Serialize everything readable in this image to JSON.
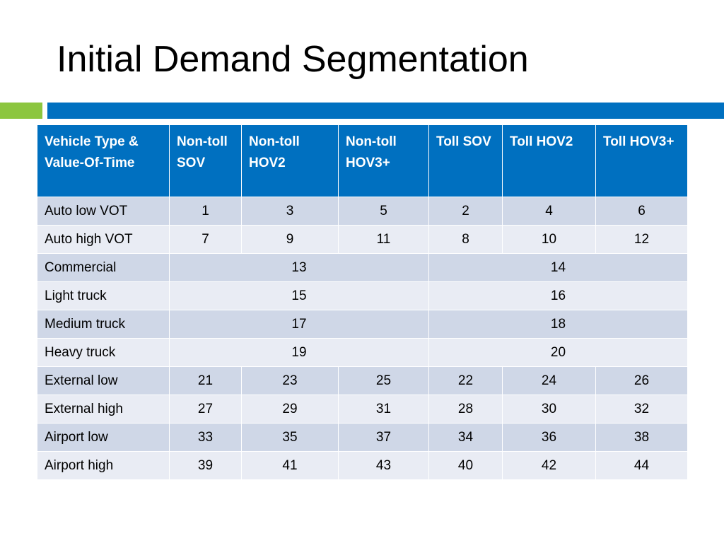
{
  "slide": {
    "title": "Initial Demand Segmentation"
  },
  "colors": {
    "accent_green": "#8cc63f",
    "accent_blue": "#0070c0",
    "row_dark": "#cfd7e7",
    "row_light": "#e9ecf4"
  },
  "table": {
    "headers": [
      "Vehicle Type & Value-Of-Time",
      "Non-toll SOV",
      "Non-toll HOV2",
      "Non-toll HOV3+",
      "Toll SOV",
      "Toll HOV2",
      "Toll HOV3+"
    ],
    "rows": [
      {
        "label": "Auto low VOT",
        "cells": [
          "1",
          "3",
          "5",
          "2",
          "4",
          "6"
        ]
      },
      {
        "label": "Auto high VOT",
        "cells": [
          "7",
          "9",
          "11",
          "8",
          "10",
          "12"
        ]
      },
      {
        "label": "Commercial",
        "cells": [
          "13",
          "14"
        ]
      },
      {
        "label": "Light truck",
        "cells": [
          "15",
          "16"
        ]
      },
      {
        "label": "Medium truck",
        "cells": [
          "17",
          "18"
        ]
      },
      {
        "label": "Heavy truck",
        "cells": [
          "19",
          "20"
        ]
      },
      {
        "label": "External low",
        "cells": [
          "21",
          "23",
          "25",
          "22",
          "24",
          "26"
        ]
      },
      {
        "label": "External high",
        "cells": [
          "27",
          "29",
          "31",
          "28",
          "30",
          "32"
        ]
      },
      {
        "label": "Airport low",
        "cells": [
          "33",
          "35",
          "37",
          "34",
          "36",
          "38"
        ]
      },
      {
        "label": "Airport high",
        "cells": [
          "39",
          "41",
          "43",
          "40",
          "42",
          "44"
        ]
      }
    ]
  }
}
